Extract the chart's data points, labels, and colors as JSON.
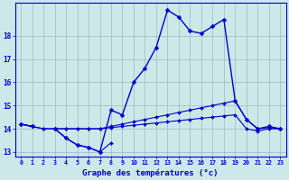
{
  "xlabel": "Graphe des températures (°c)",
  "background_color": "#cce8e8",
  "line_color": "#0000cc",
  "grid_color": "#99aabb",
  "hours": [
    0,
    1,
    2,
    3,
    4,
    5,
    6,
    7,
    8,
    9,
    10,
    11,
    12,
    13,
    14,
    15,
    16,
    17,
    18,
    19,
    20,
    21,
    22,
    23
  ],
  "line_main": [
    14.2,
    14.1,
    null,
    14.0,
    13.6,
    13.3,
    13.2,
    13.0,
    14.8,
    14.6,
    16.0,
    16.6,
    17.5,
    19.1,
    18.8,
    18.2,
    18.1,
    18.4,
    18.7,
    15.2,
    14.4,
    14.0,
    14.1,
    14.0
  ],
  "line_low": [
    14.2,
    14.1,
    null,
    14.0,
    13.6,
    13.3,
    13.2,
    13.0,
    13.4,
    null,
    null,
    null,
    null,
    null,
    null,
    null,
    null,
    null,
    null,
    null,
    null,
    null,
    null,
    null
  ],
  "line_flat1": [
    14.2,
    14.1,
    14.0,
    14.0,
    14.0,
    14.0,
    14.0,
    14.0,
    14.05,
    14.1,
    14.15,
    14.2,
    14.25,
    14.3,
    14.35,
    14.4,
    14.45,
    14.5,
    14.55,
    14.6,
    14.0,
    13.9,
    14.0,
    14.0
  ],
  "line_flat2": [
    14.2,
    14.1,
    14.0,
    14.0,
    14.0,
    14.0,
    14.0,
    14.0,
    14.1,
    14.2,
    14.3,
    14.4,
    14.5,
    14.6,
    14.7,
    14.8,
    14.9,
    15.0,
    15.1,
    15.2,
    14.4,
    14.0,
    14.05,
    14.0
  ],
  "ylim": [
    12.8,
    19.4
  ],
  "yticks": [
    13,
    14,
    15,
    16,
    17,
    18
  ],
  "xlim": [
    -0.5,
    23.5
  ]
}
